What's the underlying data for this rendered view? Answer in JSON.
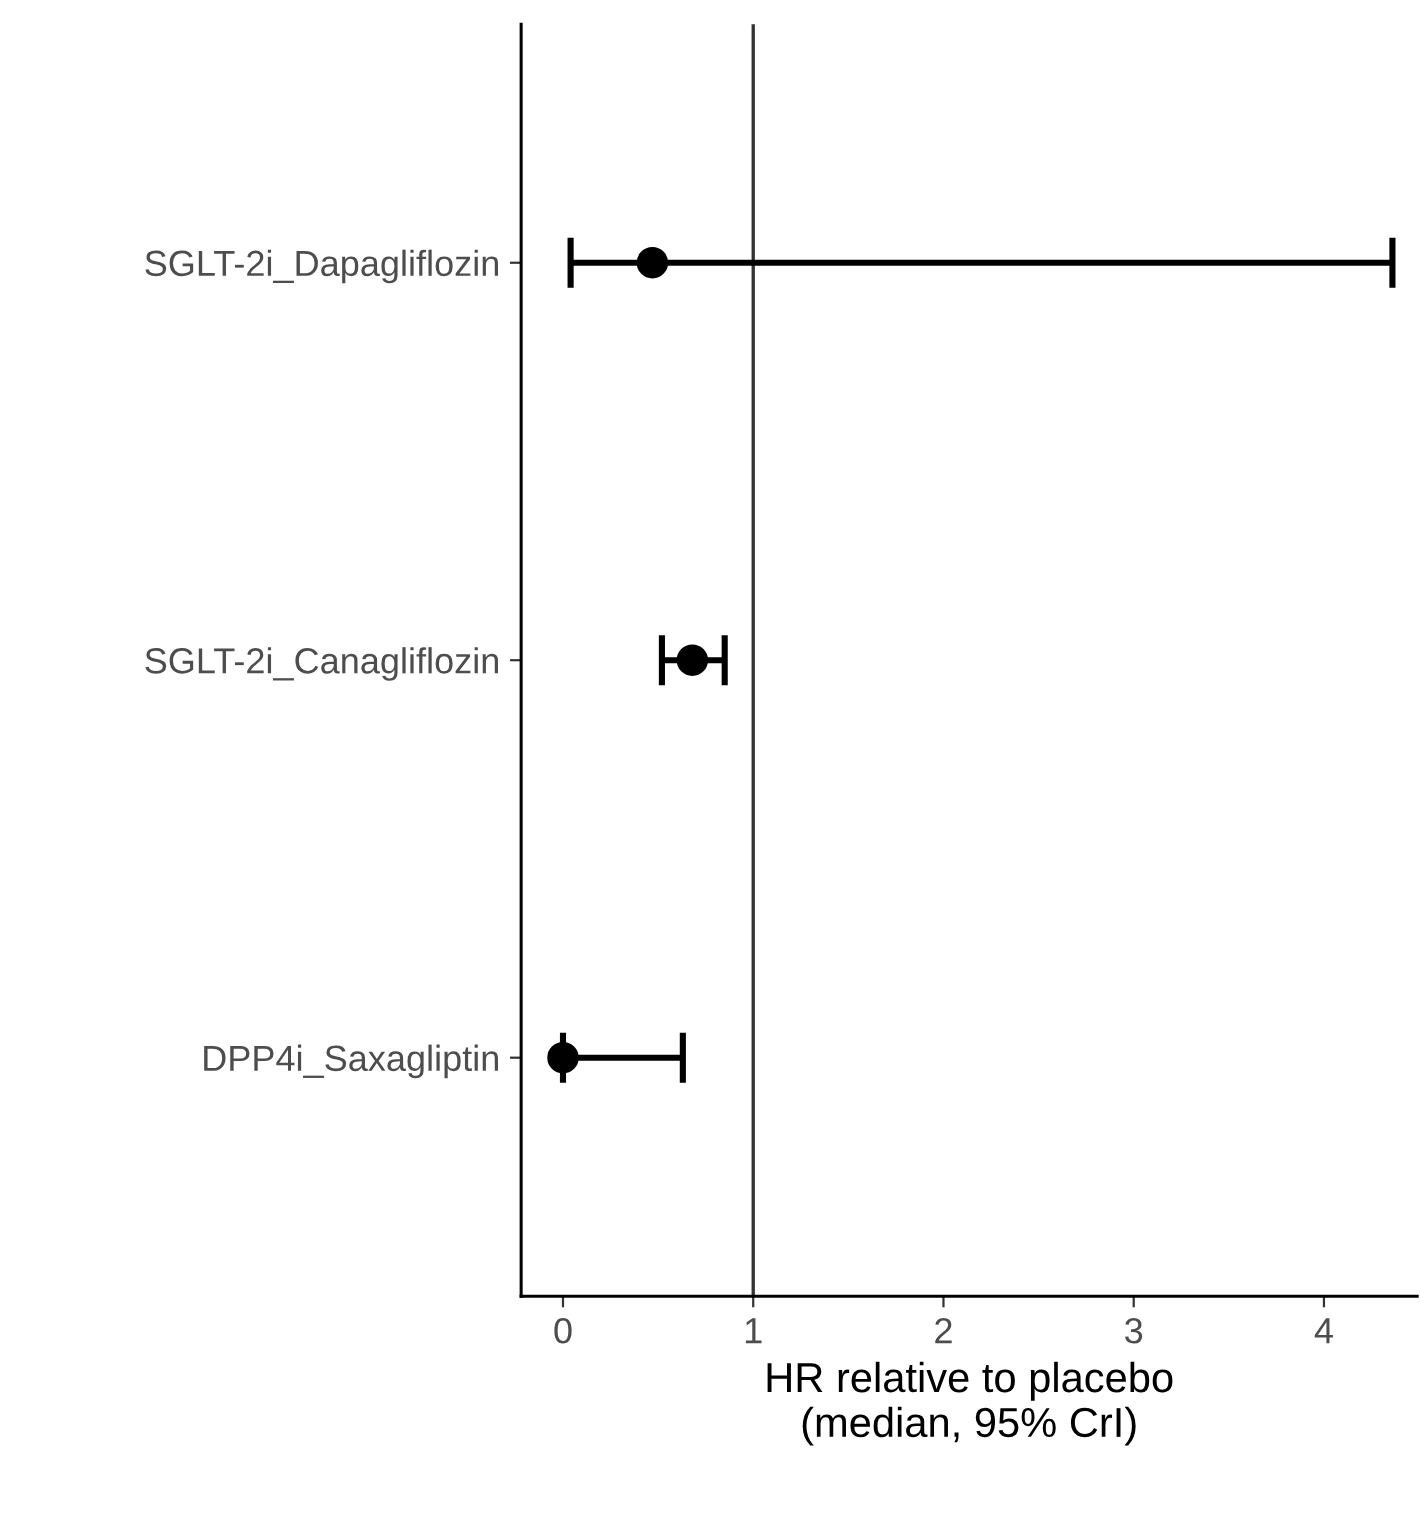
{
  "chart_data": {
    "type": "scatter",
    "orientation": "horizontal",
    "xlabel": "HR relative to placebo\n(median, 95% CrI)",
    "categories": [
      "SGLT-2i_Dapagliflozin",
      "SGLT-2i_Canagliflozin",
      "DPP4i_Saxagliptin"
    ],
    "values": [
      0.47,
      0.68,
      0.0
    ],
    "errors": [
      [
        0.04,
        4.36
      ],
      [
        0.52,
        0.85
      ],
      [
        0.0,
        0.63
      ]
    ],
    "color": "#000000",
    "marker": "circle",
    "xlim": [
      -0.22,
      4.49
    ],
    "xticks": [
      0,
      1,
      2,
      3,
      4
    ],
    "ref_lines": [
      {
        "axis": "x",
        "value": 1,
        "color": "#333333"
      }
    ],
    "grid": false,
    "legend": false
  }
}
